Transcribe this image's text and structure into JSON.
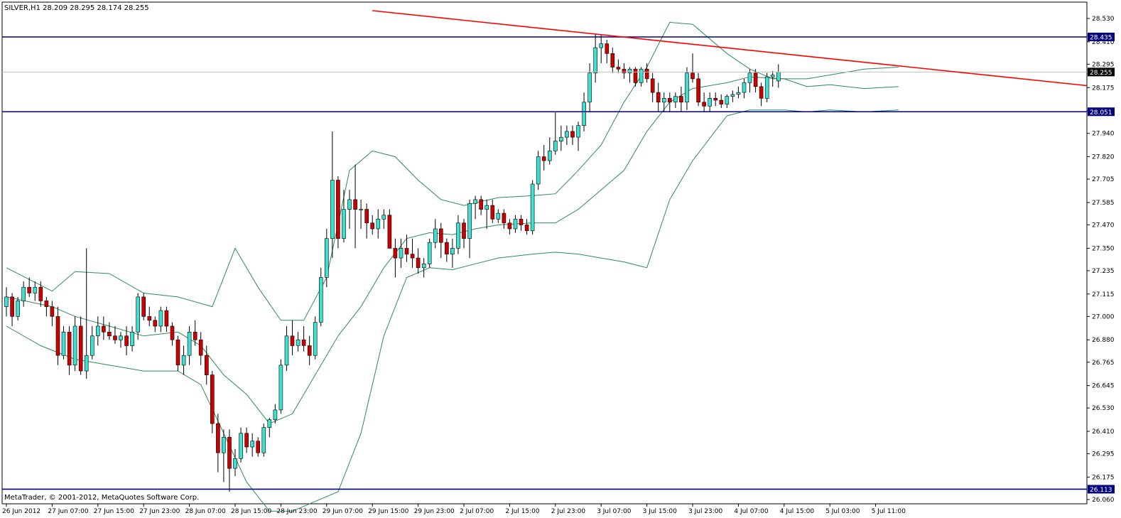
{
  "window": {
    "header": "SILVER,H1  28.209 28.295 28.174 28.255",
    "copyright": "MetaTrader, © 2001-2012, MetaQuotes Software Corp."
  },
  "chart_data": {
    "type": "candlestick",
    "symbol": "SILVER",
    "timeframe": "H1",
    "ohlc_header": {
      "open": 28.209,
      "high": 28.295,
      "low": 28.174,
      "close": 28.255
    },
    "ylim": [
      26.06,
      28.57
    ],
    "y_ticks": [
      28.53,
      28.41,
      28.295,
      28.175,
      28.055,
      27.94,
      27.82,
      27.705,
      27.585,
      27.47,
      27.35,
      27.235,
      27.115,
      27.0,
      26.88,
      26.765,
      26.645,
      26.53,
      26.41,
      26.295,
      26.175,
      26.06
    ],
    "y_tick_labels": [
      "28.530",
      "28.410",
      "28.295",
      "28.175",
      "28.055",
      "27.940",
      "27.820",
      "27.705",
      "27.585",
      "27.470",
      "27.350",
      "27.235",
      "27.115",
      "27.000",
      "26.880",
      "26.765",
      "26.645",
      "26.530",
      "26.410",
      "26.295",
      "26.175",
      "26.060"
    ],
    "x_labels": [
      {
        "bar": 0,
        "label": "26 Jun 2012"
      },
      {
        "bar": 8,
        "label": "27 Jun 07:00"
      },
      {
        "bar": 16,
        "label": "27 Jun 15:00"
      },
      {
        "bar": 24,
        "label": "27 Jun 23:00"
      },
      {
        "bar": 32,
        "label": "28 Jun 07:00"
      },
      {
        "bar": 40,
        "label": "28 Jun 15:00"
      },
      {
        "bar": 48,
        "label": "28 Jun 23:00"
      },
      {
        "bar": 56,
        "label": "29 Jun 07:00"
      },
      {
        "bar": 64,
        "label": "29 Jun 15:00"
      },
      {
        "bar": 72,
        "label": "29 Jun 23:00"
      },
      {
        "bar": 80,
        "label": "2 Jul 07:00"
      },
      {
        "bar": 88,
        "label": "2 Jul 15:00"
      },
      {
        "bar": 96,
        "label": "2 Jul 23:00"
      },
      {
        "bar": 104,
        "label": "3 Jul 07:00"
      },
      {
        "bar": 112,
        "label": "3 Jul 15:00"
      },
      {
        "bar": 120,
        "label": "3 Jul 23:00"
      },
      {
        "bar": 128,
        "label": "4 Jul 07:00"
      },
      {
        "bar": 136,
        "label": "4 Jul 15:00"
      },
      {
        "bar": 144,
        "label": "5 Jul 03:00"
      },
      {
        "bar": 152,
        "label": "5 Jul 11:00"
      }
    ],
    "horizontal_levels": [
      {
        "value": 28.435,
        "label": "28.435",
        "color": "#000080"
      },
      {
        "value": 28.051,
        "label": "28.051",
        "color": "#000080"
      },
      {
        "value": 26.113,
        "label": "26.113",
        "color": "#000080"
      }
    ],
    "current_price": {
      "value": 28.255,
      "label": "28.255"
    },
    "trendline": {
      "x1": 64,
      "y1": 28.57,
      "x2": 195.5,
      "y2": 28.185,
      "color": "#ff0000"
    },
    "bollinger_color": "#2e8b57",
    "bull_color": "#40e0d0",
    "bear_color": "#cc0000",
    "candles": [
      [
        27.05,
        27.15,
        27.0,
        27.1
      ],
      [
        27.1,
        27.12,
        26.95,
        27.0
      ],
      [
        27.0,
        27.1,
        26.98,
        27.08
      ],
      [
        27.08,
        27.18,
        27.05,
        27.15
      ],
      [
        27.15,
        27.2,
        27.1,
        27.12
      ],
      [
        27.12,
        27.18,
        27.08,
        27.15
      ],
      [
        27.15,
        27.18,
        27.05,
        27.08
      ],
      [
        27.08,
        27.1,
        27.0,
        27.05
      ],
      [
        27.05,
        27.08,
        26.95,
        27.0
      ],
      [
        27.0,
        27.05,
        26.75,
        26.8
      ],
      [
        26.8,
        26.95,
        26.78,
        26.92
      ],
      [
        26.92,
        26.95,
        26.7,
        26.75
      ],
      [
        26.75,
        27.0,
        26.72,
        26.95
      ],
      [
        26.95,
        27.0,
        26.7,
        26.72
      ],
      [
        26.72,
        27.35,
        26.68,
        26.8
      ],
      [
        26.8,
        26.95,
        26.78,
        26.9
      ],
      [
        26.9,
        27.0,
        26.85,
        26.95
      ],
      [
        26.95,
        27.0,
        26.88,
        26.92
      ],
      [
        26.92,
        26.97,
        26.88,
        26.9
      ],
      [
        26.9,
        26.95,
        26.86,
        26.88
      ],
      [
        26.88,
        26.92,
        26.84,
        26.9
      ],
      [
        26.9,
        26.95,
        26.8,
        26.85
      ],
      [
        26.85,
        26.95,
        26.82,
        26.92
      ],
      [
        26.92,
        27.12,
        26.88,
        27.1
      ],
      [
        27.1,
        27.12,
        26.98,
        27.0
      ],
      [
        27.0,
        27.05,
        26.95,
        26.98
      ],
      [
        26.98,
        27.0,
        26.92,
        26.95
      ],
      [
        26.95,
        27.05,
        26.92,
        27.03
      ],
      [
        27.03,
        27.05,
        26.92,
        26.95
      ],
      [
        26.95,
        26.97,
        26.85,
        26.88
      ],
      [
        26.88,
        26.9,
        26.72,
        26.75
      ],
      [
        26.75,
        26.85,
        26.7,
        26.8
      ],
      [
        26.8,
        26.95,
        26.75,
        26.92
      ],
      [
        26.92,
        26.98,
        26.85,
        26.88
      ],
      [
        26.88,
        26.92,
        26.75,
        26.8
      ],
      [
        26.8,
        26.85,
        26.65,
        26.7
      ],
      [
        26.7,
        26.72,
        26.4,
        26.45
      ],
      [
        26.45,
        26.5,
        26.2,
        26.3
      ],
      [
        26.3,
        26.42,
        26.15,
        26.38
      ],
      [
        26.38,
        26.42,
        26.1,
        26.22
      ],
      [
        26.22,
        26.32,
        26.18,
        26.27
      ],
      [
        26.27,
        26.43,
        26.25,
        26.4
      ],
      [
        26.4,
        26.43,
        26.3,
        26.33
      ],
      [
        26.33,
        26.4,
        26.28,
        26.36
      ],
      [
        26.36,
        26.38,
        26.28,
        26.3
      ],
      [
        26.3,
        26.45,
        26.28,
        26.43
      ],
      [
        26.43,
        26.48,
        26.38,
        26.47
      ],
      [
        26.47,
        26.55,
        26.45,
        26.52
      ],
      [
        26.52,
        26.78,
        26.5,
        26.75
      ],
      [
        26.75,
        26.95,
        26.72,
        26.9
      ],
      [
        26.9,
        26.98,
        26.8,
        26.85
      ],
      [
        26.85,
        26.92,
        26.82,
        26.88
      ],
      [
        26.88,
        26.95,
        26.82,
        26.85
      ],
      [
        26.85,
        26.9,
        26.75,
        26.8
      ],
      [
        26.8,
        27.0,
        26.78,
        26.97
      ],
      [
        26.97,
        27.25,
        26.95,
        27.2
      ],
      [
        27.2,
        27.45,
        27.15,
        27.4
      ],
      [
        27.4,
        27.95,
        27.3,
        27.7
      ],
      [
        27.7,
        27.72,
        27.35,
        27.4
      ],
      [
        27.4,
        27.65,
        27.38,
        27.55
      ],
      [
        27.55,
        27.65,
        27.45,
        27.6
      ],
      [
        27.6,
        27.78,
        27.35,
        27.55
      ],
      [
        27.55,
        27.6,
        27.45,
        27.55
      ],
      [
        27.55,
        27.58,
        27.4,
        27.48
      ],
      [
        27.48,
        27.52,
        27.42,
        27.45
      ],
      [
        27.45,
        27.55,
        27.4,
        27.5
      ],
      [
        27.5,
        27.55,
        27.45,
        27.52
      ],
      [
        27.52,
        27.55,
        27.35,
        27.35
      ],
      [
        27.35,
        27.4,
        27.2,
        27.3
      ],
      [
        27.3,
        27.4,
        27.25,
        27.35
      ],
      [
        27.35,
        27.42,
        27.28,
        27.32
      ],
      [
        27.32,
        27.4,
        27.25,
        27.3
      ],
      [
        27.3,
        27.35,
        27.22,
        27.25
      ],
      [
        27.25,
        27.3,
        27.2,
        27.27
      ],
      [
        27.27,
        27.4,
        27.25,
        27.38
      ],
      [
        27.38,
        27.5,
        27.35,
        27.45
      ],
      [
        27.45,
        27.48,
        27.3,
        27.38
      ],
      [
        27.38,
        27.4,
        27.28,
        27.32
      ],
      [
        27.32,
        27.4,
        27.25,
        27.35
      ],
      [
        27.35,
        27.52,
        27.32,
        27.48
      ],
      [
        27.48,
        27.5,
        27.35,
        27.4
      ],
      [
        27.4,
        27.6,
        27.3,
        27.58
      ],
      [
        27.58,
        27.62,
        27.5,
        27.6
      ],
      [
        27.6,
        27.62,
        27.52,
        27.55
      ],
      [
        27.55,
        27.6,
        27.45,
        27.57
      ],
      [
        27.57,
        27.6,
        27.48,
        27.5
      ],
      [
        27.5,
        27.55,
        27.48,
        27.53
      ],
      [
        27.53,
        27.55,
        27.45,
        27.48
      ],
      [
        27.48,
        27.5,
        27.42,
        27.45
      ],
      [
        27.45,
        27.52,
        27.43,
        27.5
      ],
      [
        27.5,
        27.52,
        27.44,
        27.47
      ],
      [
        27.47,
        27.5,
        27.42,
        27.44
      ],
      [
        27.44,
        27.7,
        27.42,
        27.68
      ],
      [
        27.68,
        27.85,
        27.65,
        27.82
      ],
      [
        27.82,
        27.88,
        27.75,
        27.8
      ],
      [
        27.8,
        27.92,
        27.78,
        27.85
      ],
      [
        27.85,
        28.05,
        27.83,
        27.9
      ],
      [
        27.9,
        27.98,
        27.85,
        27.92
      ],
      [
        27.92,
        27.98,
        27.88,
        27.95
      ],
      [
        27.95,
        27.98,
        27.88,
        27.92
      ],
      [
        27.92,
        28.0,
        27.85,
        27.98
      ],
      [
        27.98,
        28.15,
        27.95,
        28.1
      ],
      [
        28.1,
        28.3,
        28.05,
        28.25
      ],
      [
        28.25,
        28.45,
        28.2,
        28.38
      ],
      [
        28.38,
        28.45,
        28.3,
        28.4
      ],
      [
        28.4,
        28.42,
        28.3,
        28.35
      ],
      [
        28.35,
        28.38,
        28.25,
        28.28
      ],
      [
        28.28,
        28.32,
        28.25,
        28.27
      ],
      [
        28.27,
        28.3,
        28.22,
        28.25
      ],
      [
        28.25,
        28.28,
        28.2,
        28.27
      ],
      [
        28.27,
        28.28,
        28.18,
        28.2
      ],
      [
        28.2,
        28.28,
        28.18,
        28.27
      ],
      [
        28.27,
        28.3,
        28.2,
        28.22
      ],
      [
        28.22,
        28.25,
        28.1,
        28.15
      ],
      [
        28.15,
        28.2,
        28.05,
        28.1
      ],
      [
        28.1,
        28.15,
        28.05,
        28.12
      ],
      [
        28.12,
        28.15,
        28.05,
        28.1
      ],
      [
        28.1,
        28.15,
        28.07,
        28.13
      ],
      [
        28.13,
        28.18,
        28.05,
        28.1
      ],
      [
        28.1,
        28.28,
        28.06,
        28.25
      ],
      [
        28.25,
        28.35,
        28.2,
        28.22
      ],
      [
        28.22,
        28.25,
        28.08,
        28.1
      ],
      [
        28.1,
        28.15,
        28.05,
        28.08
      ],
      [
        28.08,
        28.15,
        28.05,
        28.12
      ],
      [
        28.12,
        28.15,
        28.08,
        28.11
      ],
      [
        28.11,
        28.14,
        28.07,
        28.09
      ],
      [
        28.09,
        28.14,
        28.07,
        28.13
      ],
      [
        28.13,
        28.16,
        28.1,
        28.14
      ],
      [
        28.14,
        28.18,
        28.12,
        28.15
      ],
      [
        28.15,
        28.22,
        28.12,
        28.2
      ],
      [
        28.2,
        28.27,
        28.15,
        28.25
      ],
      [
        28.25,
        28.27,
        28.15,
        28.18
      ],
      [
        28.18,
        28.2,
        28.08,
        28.12
      ],
      [
        28.12,
        28.25,
        28.1,
        28.23
      ],
      [
        28.23,
        28.26,
        28.18,
        28.24
      ],
      [
        28.209,
        28.295,
        28.174,
        28.255
      ]
    ],
    "bollinger": {
      "upper": [
        [
          0,
          27.25
        ],
        [
          8,
          27.13
        ],
        [
          12,
          27.23
        ],
        [
          18,
          27.22
        ],
        [
          24,
          27.12
        ],
        [
          30,
          27.1
        ],
        [
          36,
          27.05
        ],
        [
          40,
          27.35
        ],
        [
          44,
          27.15
        ],
        [
          48,
          26.98
        ],
        [
          52,
          26.98
        ],
        [
          56,
          27.2
        ],
        [
          60,
          27.75
        ],
        [
          64,
          27.85
        ],
        [
          68,
          27.82
        ],
        [
          72,
          27.7
        ],
        [
          76,
          27.6
        ],
        [
          80,
          27.57
        ],
        [
          86,
          27.61
        ],
        [
          92,
          27.62
        ],
        [
          96,
          27.63
        ],
        [
          100,
          27.75
        ],
        [
          104,
          27.88
        ],
        [
          108,
          28.1
        ],
        [
          112,
          28.28
        ],
        [
          116,
          28.51
        ],
        [
          120,
          28.5
        ],
        [
          126,
          28.35
        ],
        [
          130,
          28.27
        ],
        [
          134,
          28.22
        ],
        [
          140,
          28.22
        ],
        [
          144,
          28.24
        ],
        [
          150,
          28.27
        ],
        [
          156,
          28.28
        ]
      ],
      "middle": [
        [
          0,
          27.1
        ],
        [
          8,
          27.05
        ],
        [
          12,
          27.0
        ],
        [
          18,
          26.95
        ],
        [
          24,
          26.9
        ],
        [
          30,
          26.92
        ],
        [
          34,
          26.85
        ],
        [
          38,
          26.7
        ],
        [
          42,
          26.6
        ],
        [
          46,
          26.45
        ],
        [
          50,
          26.5
        ],
        [
          54,
          26.7
        ],
        [
          58,
          26.9
        ],
        [
          62,
          27.05
        ],
        [
          66,
          27.25
        ],
        [
          70,
          27.4
        ],
        [
          74,
          27.43
        ],
        [
          78,
          27.42
        ],
        [
          82,
          27.45
        ],
        [
          86,
          27.47
        ],
        [
          92,
          27.48
        ],
        [
          96,
          27.48
        ],
        [
          100,
          27.55
        ],
        [
          104,
          27.65
        ],
        [
          108,
          27.75
        ],
        [
          112,
          27.95
        ],
        [
          116,
          28.1
        ],
        [
          120,
          28.17
        ],
        [
          126,
          28.2
        ],
        [
          130,
          28.23
        ],
        [
          136,
          28.22
        ],
        [
          140,
          28.18
        ],
        [
          144,
          28.19
        ],
        [
          150,
          28.17
        ],
        [
          156,
          28.18
        ]
      ],
      "lower": [
        [
          0,
          26.95
        ],
        [
          6,
          26.85
        ],
        [
          12,
          26.78
        ],
        [
          18,
          26.75
        ],
        [
          24,
          26.72
        ],
        [
          30,
          26.72
        ],
        [
          34,
          26.65
        ],
        [
          38,
          26.4
        ],
        [
          42,
          26.15
        ],
        [
          46,
          26.0
        ],
        [
          50,
          26.0
        ],
        [
          54,
          26.05
        ],
        [
          58,
          26.1
        ],
        [
          62,
          26.4
        ],
        [
          66,
          26.9
        ],
        [
          70,
          27.2
        ],
        [
          74,
          27.25
        ],
        [
          78,
          27.24
        ],
        [
          82,
          27.27
        ],
        [
          86,
          27.3
        ],
        [
          92,
          27.32
        ],
        [
          96,
          27.33
        ],
        [
          100,
          27.32
        ],
        [
          104,
          27.3
        ],
        [
          108,
          27.28
        ],
        [
          112,
          27.25
        ],
        [
          116,
          27.6
        ],
        [
          120,
          27.8
        ],
        [
          126,
          28.03
        ],
        [
          130,
          28.06
        ],
        [
          136,
          28.06
        ],
        [
          140,
          28.05
        ],
        [
          144,
          28.06
        ],
        [
          150,
          28.05
        ],
        [
          156,
          28.06
        ]
      ]
    }
  }
}
